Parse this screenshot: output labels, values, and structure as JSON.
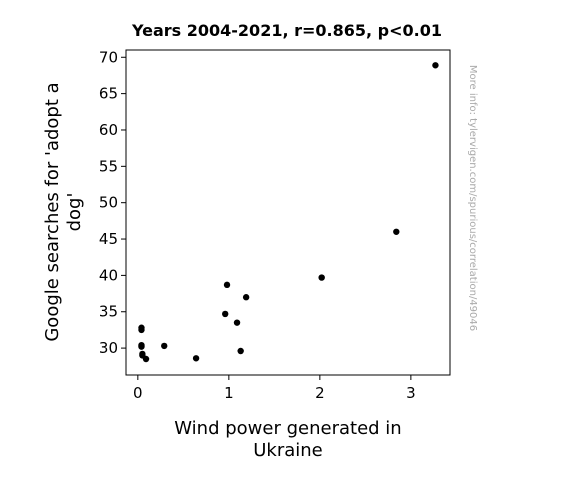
{
  "chart_data": {
    "type": "scatter",
    "title": "Years 2004-2021, r=0.865, p<0.01",
    "xlabel": [
      "Wind power generated in",
      "Ukraine"
    ],
    "ylabel": [
      "Google searches for 'adopt a",
      "dog'"
    ],
    "xlim": [
      -0.13,
      3.43
    ],
    "ylim": [
      26.3,
      71.0
    ],
    "xticks": [
      0,
      1,
      2,
      3
    ],
    "yticks": [
      30,
      35,
      40,
      45,
      50,
      55,
      60,
      65,
      70
    ],
    "grid": false,
    "legend": "none",
    "marker_color": "#000000",
    "points": [
      {
        "x": 0.04,
        "y": 32.8
      },
      {
        "x": 0.04,
        "y": 32.5
      },
      {
        "x": 0.04,
        "y": 30.4
      },
      {
        "x": 0.04,
        "y": 30.2
      },
      {
        "x": 0.05,
        "y": 29.2
      },
      {
        "x": 0.05,
        "y": 29.0
      },
      {
        "x": 0.09,
        "y": 28.5
      },
      {
        "x": 0.29,
        "y": 30.3
      },
      {
        "x": 0.64,
        "y": 28.6
      },
      {
        "x": 0.96,
        "y": 34.7
      },
      {
        "x": 0.98,
        "y": 38.7
      },
      {
        "x": 1.09,
        "y": 33.5
      },
      {
        "x": 1.13,
        "y": 29.6
      },
      {
        "x": 1.19,
        "y": 37.0
      },
      {
        "x": 2.02,
        "y": 39.7
      },
      {
        "x": 2.84,
        "y": 46.0
      },
      {
        "x": 3.27,
        "y": 68.9
      }
    ]
  },
  "credit": "More info: tylervigen.com/spurious/correlation/49046"
}
